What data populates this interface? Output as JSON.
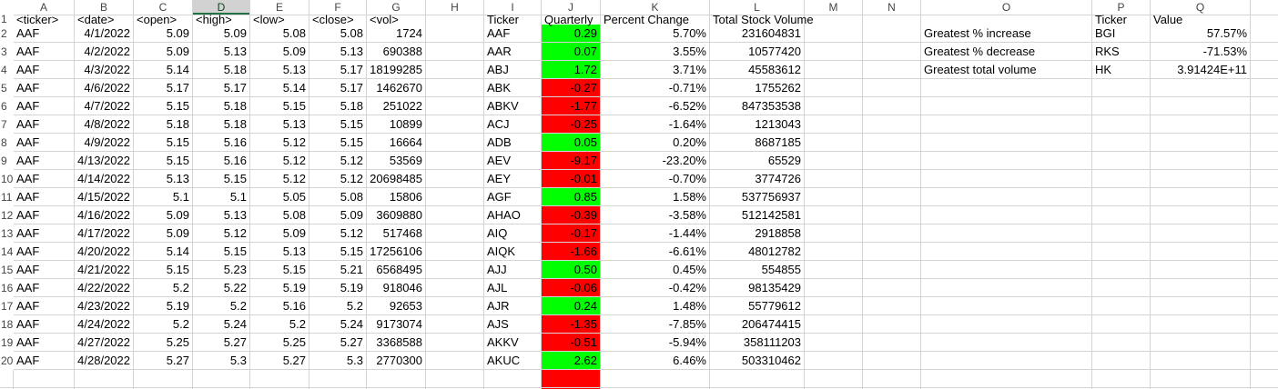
{
  "columns": [
    "A",
    "B",
    "C",
    "D",
    "E",
    "F",
    "G",
    "H",
    "I",
    "J",
    "K",
    "L",
    "M",
    "N",
    "O",
    "P",
    "Q"
  ],
  "selected_column": "D",
  "rows": [
    "1",
    "2",
    "3",
    "4",
    "5",
    "6",
    "7",
    "8",
    "9",
    "10",
    "11",
    "12",
    "13",
    "14",
    "15",
    "16",
    "17",
    "18",
    "19",
    "20"
  ],
  "raw_headers": [
    "<ticker>",
    "<date>",
    "<open>",
    "<high>",
    "<low>",
    "<close>",
    "<vol>"
  ],
  "raw_data": [
    [
      "AAF",
      "4/1/2022",
      "5.09",
      "5.09",
      "5.08",
      "5.08",
      "1724"
    ],
    [
      "AAF",
      "4/2/2022",
      "5.09",
      "5.13",
      "5.09",
      "5.13",
      "690388"
    ],
    [
      "AAF",
      "4/3/2022",
      "5.14",
      "5.18",
      "5.13",
      "5.17",
      "18199285"
    ],
    [
      "AAF",
      "4/6/2022",
      "5.17",
      "5.17",
      "5.14",
      "5.17",
      "1462670"
    ],
    [
      "AAF",
      "4/7/2022",
      "5.15",
      "5.18",
      "5.15",
      "5.18",
      "251022"
    ],
    [
      "AAF",
      "4/8/2022",
      "5.18",
      "5.18",
      "5.13",
      "5.15",
      "10899"
    ],
    [
      "AAF",
      "4/9/2022",
      "5.15",
      "5.16",
      "5.12",
      "5.15",
      "16664"
    ],
    [
      "AAF",
      "4/13/2022",
      "5.15",
      "5.16",
      "5.12",
      "5.12",
      "53569"
    ],
    [
      "AAF",
      "4/14/2022",
      "5.13",
      "5.15",
      "5.12",
      "5.12",
      "20698485"
    ],
    [
      "AAF",
      "4/15/2022",
      "5.1",
      "5.1",
      "5.05",
      "5.08",
      "15806"
    ],
    [
      "AAF",
      "4/16/2022",
      "5.09",
      "5.13",
      "5.08",
      "5.09",
      "3609880"
    ],
    [
      "AAF",
      "4/17/2022",
      "5.09",
      "5.12",
      "5.09",
      "5.12",
      "517468"
    ],
    [
      "AAF",
      "4/20/2022",
      "5.14",
      "5.15",
      "5.13",
      "5.15",
      "17256106"
    ],
    [
      "AAF",
      "4/21/2022",
      "5.15",
      "5.23",
      "5.15",
      "5.21",
      "6568495"
    ],
    [
      "AAF",
      "4/22/2022",
      "5.2",
      "5.22",
      "5.19",
      "5.19",
      "918046"
    ],
    [
      "AAF",
      "4/23/2022",
      "5.19",
      "5.2",
      "5.16",
      "5.2",
      "92653"
    ],
    [
      "AAF",
      "4/24/2022",
      "5.2",
      "5.24",
      "5.2",
      "5.24",
      "9173074"
    ],
    [
      "AAF",
      "4/27/2022",
      "5.25",
      "5.27",
      "5.25",
      "5.27",
      "3368588"
    ],
    [
      "AAF",
      "4/28/2022",
      "5.27",
      "5.3",
      "5.27",
      "5.3",
      "2770300"
    ]
  ],
  "summary_headers": [
    "Ticker",
    "Quarterly",
    "Percent Change",
    "Total Stock Volume"
  ],
  "summary_data": [
    [
      "AAF",
      "0.29",
      "5.70%",
      "231604831",
      "positive"
    ],
    [
      "AAR",
      "0.07",
      "3.55%",
      "10577420",
      "positive"
    ],
    [
      "ABJ",
      "1.72",
      "3.71%",
      "45583612",
      "positive"
    ],
    [
      "ABK",
      "-0.27",
      "-0.71%",
      "1755262",
      "negative"
    ],
    [
      "ABKV",
      "-1.77",
      "-6.52%",
      "847353538",
      "negative"
    ],
    [
      "ACJ",
      "-0.25",
      "-1.64%",
      "1213043",
      "negative"
    ],
    [
      "ADB",
      "0.05",
      "0.20%",
      "8687185",
      "positive"
    ],
    [
      "AEV",
      "-9.17",
      "-23.20%",
      "65529",
      "negative"
    ],
    [
      "AEY",
      "-0.01",
      "-0.70%",
      "3774726",
      "negative"
    ],
    [
      "AGF",
      "0.85",
      "1.58%",
      "537756937",
      "positive"
    ],
    [
      "AHAO",
      "-0.39",
      "-3.58%",
      "512142581",
      "negative"
    ],
    [
      "AIQ",
      "-0.17",
      "-1.44%",
      "2918858",
      "negative"
    ],
    [
      "AIQK",
      "-1.66",
      "-6.61%",
      "48012782",
      "negative"
    ],
    [
      "AJJ",
      "0.50",
      "0.45%",
      "554855",
      "positive"
    ],
    [
      "AJL",
      "-0.06",
      "-0.42%",
      "98135429",
      "negative"
    ],
    [
      "AJR",
      "0.24",
      "1.48%",
      "55779612",
      "positive"
    ],
    [
      "AJS",
      "-1.35",
      "-7.85%",
      "206474415",
      "negative"
    ],
    [
      "AKKV",
      "-0.51",
      "-5.94%",
      "358111203",
      "negative"
    ],
    [
      "AKUC",
      "2.62",
      "6.46%",
      "503310462",
      "positive"
    ]
  ],
  "greatest_headers": [
    "Ticker",
    "Value"
  ],
  "greatest_data": [
    [
      "Greatest % increase",
      "BGI",
      "57.57%"
    ],
    [
      "Greatest % decrease",
      "RKS",
      "-71.53%"
    ],
    [
      "Greatest total volume",
      "HK",
      "3.91424E+11"
    ]
  ],
  "colors": {
    "positive": "#00ff00",
    "negative": "#ff0000",
    "selected_header_accent": "#217346"
  }
}
